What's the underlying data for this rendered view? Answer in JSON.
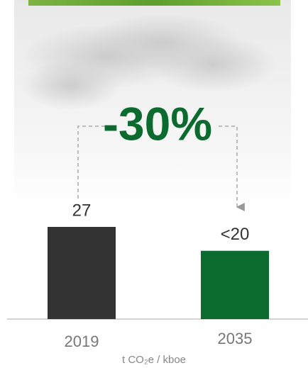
{
  "chart_data": {
    "type": "bar",
    "annotation": "-30%",
    "x_label": "t CO₂e / kboe",
    "categories": [
      "2019",
      "2035"
    ],
    "values": [
      27,
      20
    ],
    "value_labels": [
      "27",
      "<20"
    ],
    "colors": [
      "#333333",
      "#0b6b2f"
    ],
    "annotation_color": "#0b6b2f"
  }
}
